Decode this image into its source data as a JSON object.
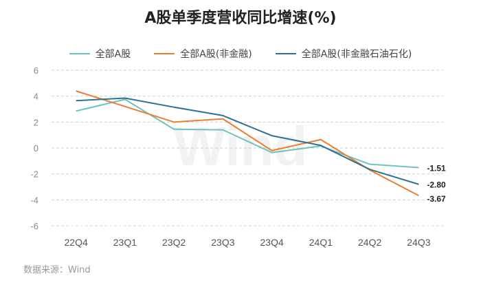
{
  "chart_data": {
    "type": "line",
    "title": "A股单季度营收同比增速(%)",
    "categories": [
      "22Q4",
      "23Q1",
      "23Q2",
      "23Q3",
      "23Q4",
      "24Q1",
      "24Q2",
      "24Q3"
    ],
    "series": [
      {
        "name": "全部A股",
        "color": "#6cc3bd",
        "values": [
          2.85,
          3.75,
          1.45,
          1.4,
          -0.35,
          0.15,
          -1.25,
          -1.51
        ],
        "end_label": "-1.51"
      },
      {
        "name": "全部A股(非金融)",
        "color": "#ed7d31",
        "values": [
          4.4,
          3.2,
          2.0,
          2.25,
          -0.2,
          0.65,
          -1.7,
          -3.67
        ],
        "end_label": "-3.67"
      },
      {
        "name": "全部A股(非金融石油石化)",
        "color": "#2e7193",
        "values": [
          3.65,
          3.85,
          3.15,
          2.5,
          0.95,
          0.2,
          -1.65,
          -2.8
        ],
        "end_label": "-2.80"
      }
    ],
    "y_ticks": [
      "6",
      "4",
      "2",
      "0",
      "-2",
      "-4",
      "-6"
    ],
    "ylim": [
      -6,
      6
    ],
    "xlabel": "",
    "ylabel": "",
    "grid": true,
    "legend_position": "top"
  },
  "source": "数据来源：Wind",
  "watermark": "Wind"
}
